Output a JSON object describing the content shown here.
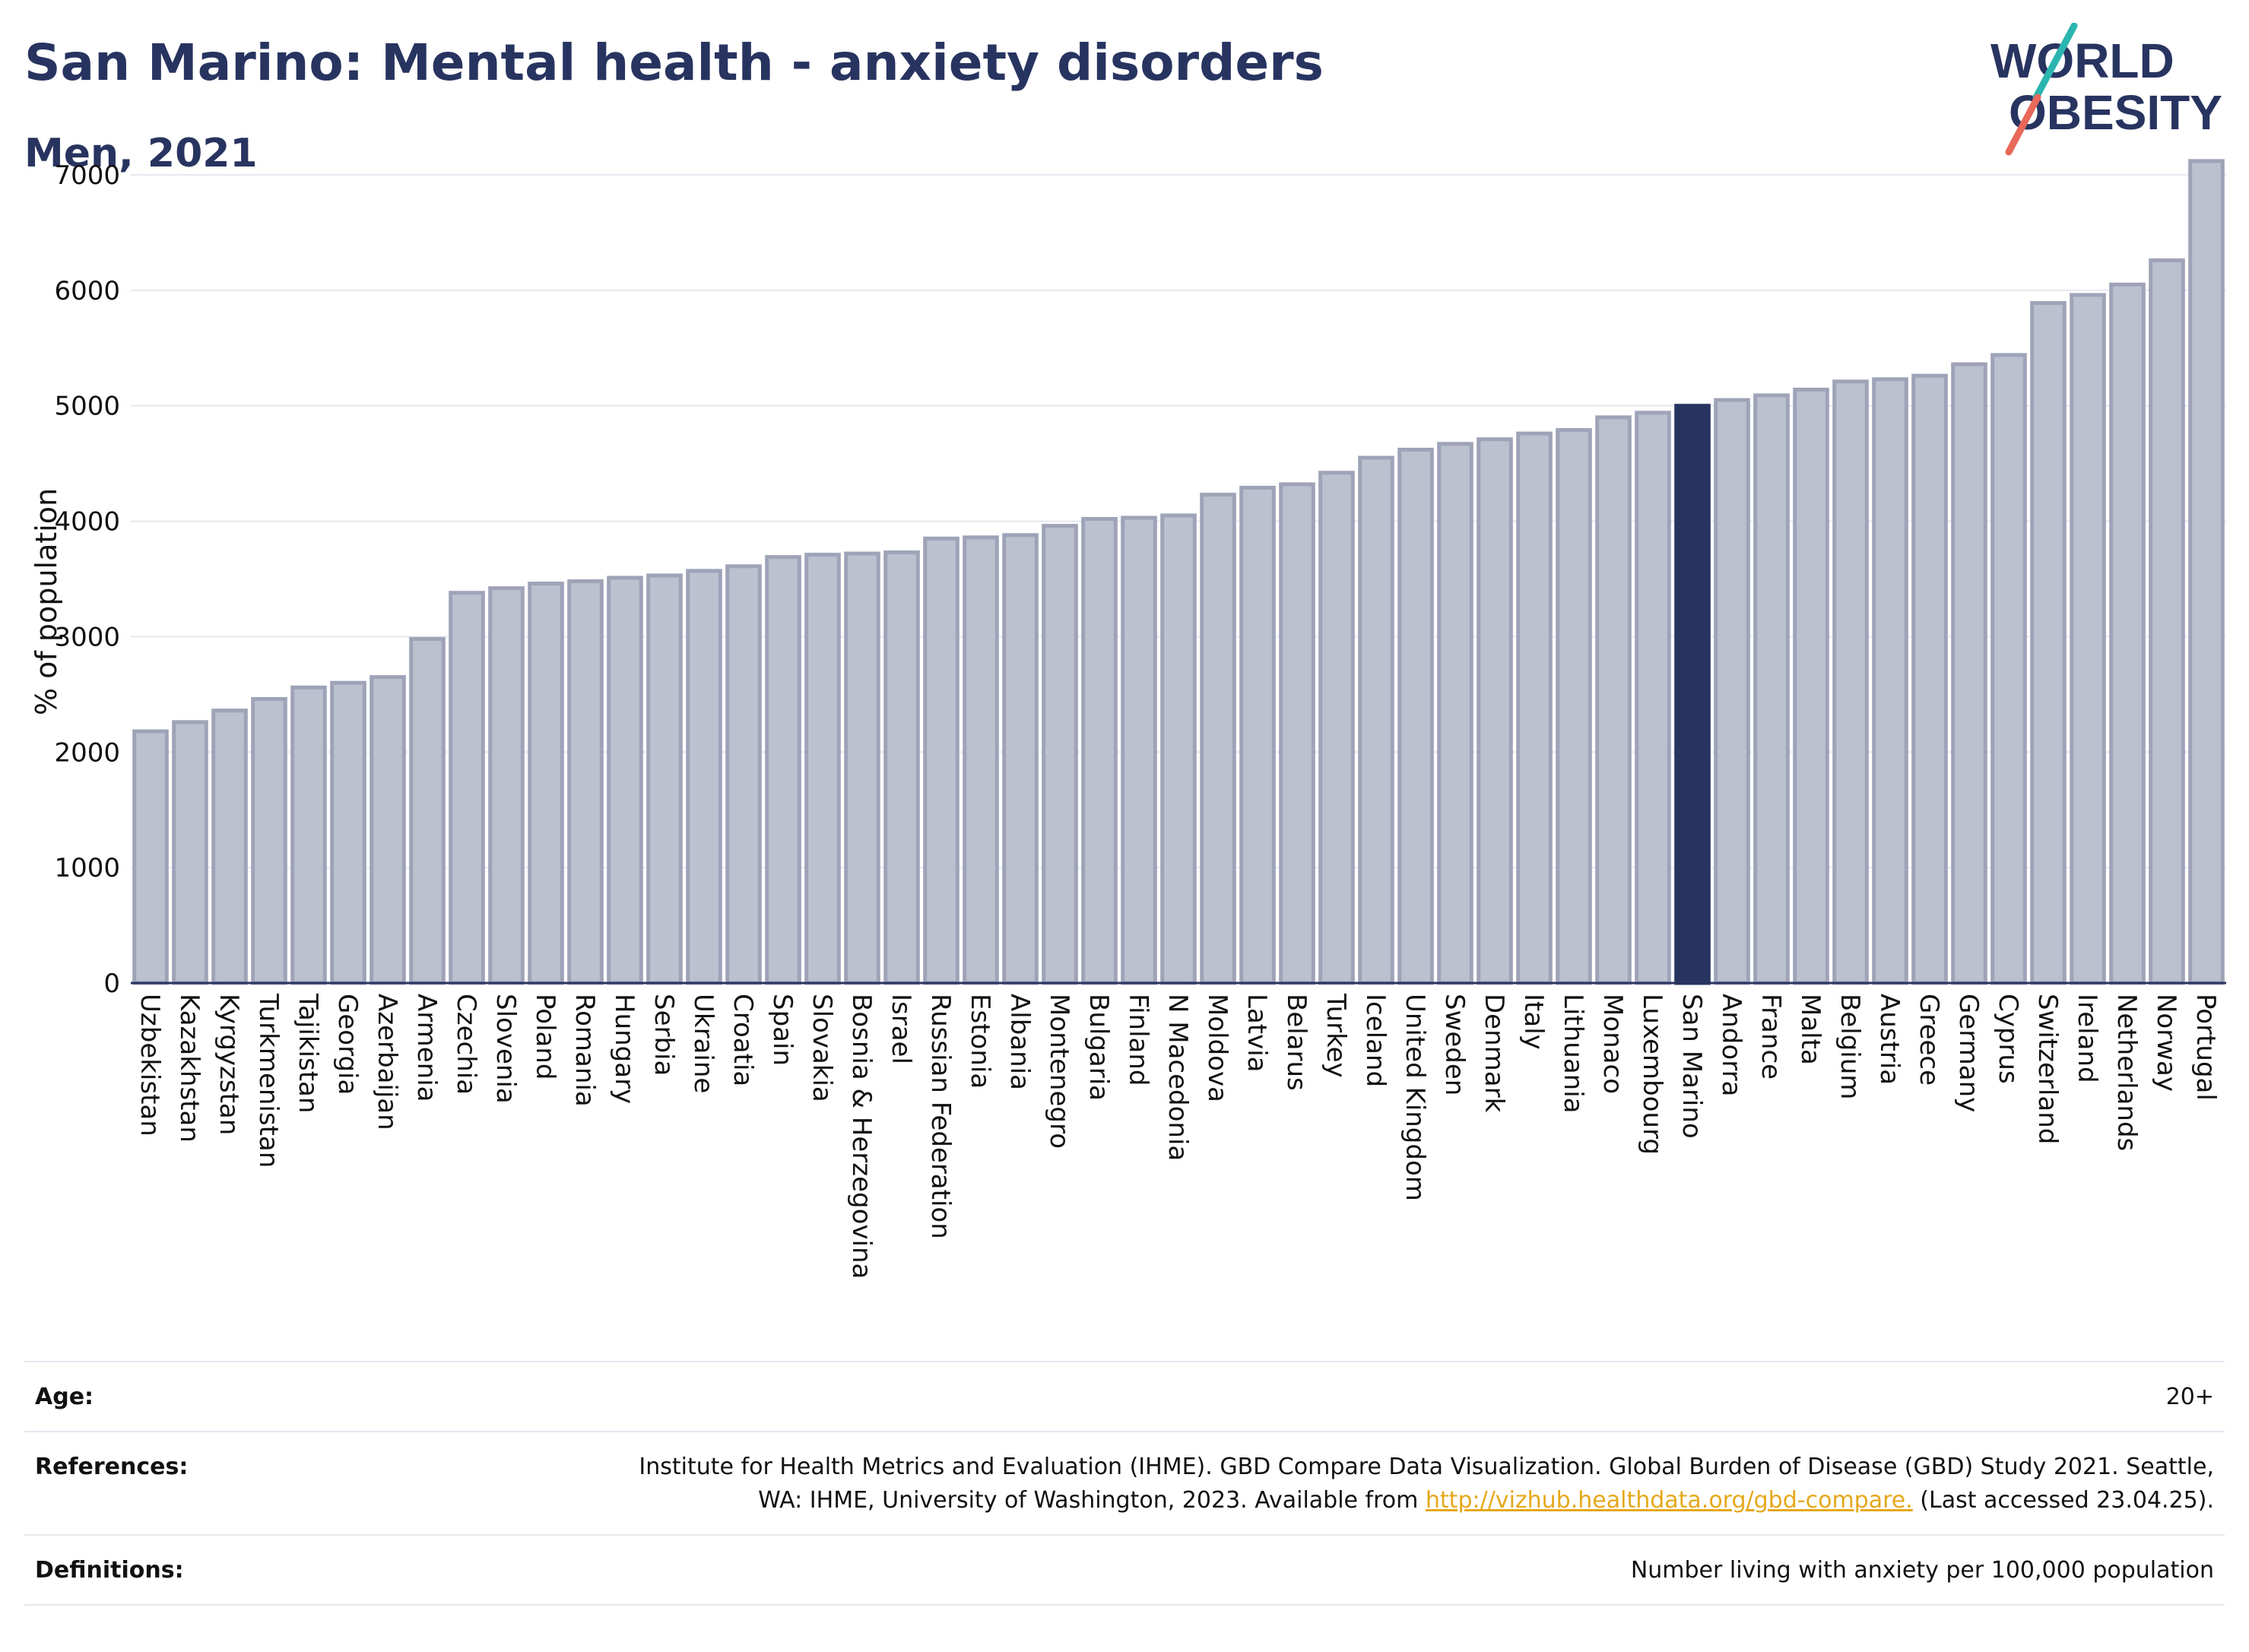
{
  "header": {
    "title": "San Marino: Mental health - anxiety disorders",
    "subtitle": "Men, 2021"
  },
  "logo": {
    "line1": "WORLD",
    "line2": "OBESITY",
    "colors": {
      "text": "#283460",
      "slash_top": "#2bb5b0",
      "slash_bottom": "#e8685a"
    }
  },
  "colors": {
    "bar_default": "#bcc0cf",
    "bar_default_stroke": "#9ea3b8",
    "bar_highlight": "#283460",
    "grid": "#e6e8ef",
    "axis": "#283460",
    "text": "#111111"
  },
  "chart_data": {
    "type": "bar",
    "ylabel": "% of population",
    "ylim": [
      0,
      7000
    ],
    "yticks": [
      0,
      1000,
      2000,
      3000,
      4000,
      5000,
      6000,
      7000
    ],
    "grid": true,
    "highlight": "San Marino",
    "categories": [
      "Uzbekistan",
      "Kazakhstan",
      "Kyrgyzstan",
      "Turkmenistan",
      "Tajikistan",
      "Georgia",
      "Azerbaijan",
      "Armenia",
      "Czechia",
      "Slovenia",
      "Poland",
      "Romania",
      "Hungary",
      "Serbia",
      "Ukraine",
      "Croatia",
      "Spain",
      "Slovakia",
      "Bosnia & Herzegovina",
      "Israel",
      "Russian Federation",
      "Estonia",
      "Albania",
      "Montenegro",
      "Bulgaria",
      "Finland",
      "N Macedonia",
      "Moldova",
      "Latvia",
      "Belarus",
      "Turkey",
      "Iceland",
      "United Kingdom",
      "Sweden",
      "Denmark",
      "Italy",
      "Lithuania",
      "Monaco",
      "Luxembourg",
      "San Marino",
      "Andorra",
      "France",
      "Malta",
      "Belgium",
      "Austria",
      "Greece",
      "Germany",
      "Cyprus",
      "Switzerland",
      "Ireland",
      "Netherlands",
      "Norway",
      "Portugal"
    ],
    "values": [
      2180,
      2260,
      2360,
      2460,
      2560,
      2600,
      2650,
      2980,
      3380,
      3420,
      3460,
      3480,
      3510,
      3530,
      3570,
      3610,
      3690,
      3710,
      3720,
      3730,
      3850,
      3860,
      3880,
      3960,
      4020,
      4030,
      4050,
      4230,
      4290,
      4320,
      4420,
      4550,
      4620,
      4670,
      4710,
      4760,
      4790,
      4900,
      4940,
      5000,
      5050,
      5090,
      5140,
      5210,
      5230,
      5260,
      5360,
      5440,
      5890,
      5960,
      6050,
      6260,
      7120
    ]
  },
  "info": {
    "age_label": "Age:",
    "age_value": "20+",
    "references_label": "References:",
    "references_text": "Institute for Health Metrics and Evaluation (IHME). GBD Compare Data Visualization. Global Burden of Disease (GBD) Study 2021. Seattle, WA: IHME, University of Washington, 2023. Available from ",
    "references_link": "http://vizhub.healthdata.org/gbd-compare.",
    "references_tail": " (Last accessed 23.04.25).",
    "definitions_label": "Definitions:",
    "definitions_value": "Number living with anxiety per 100,000 population"
  }
}
